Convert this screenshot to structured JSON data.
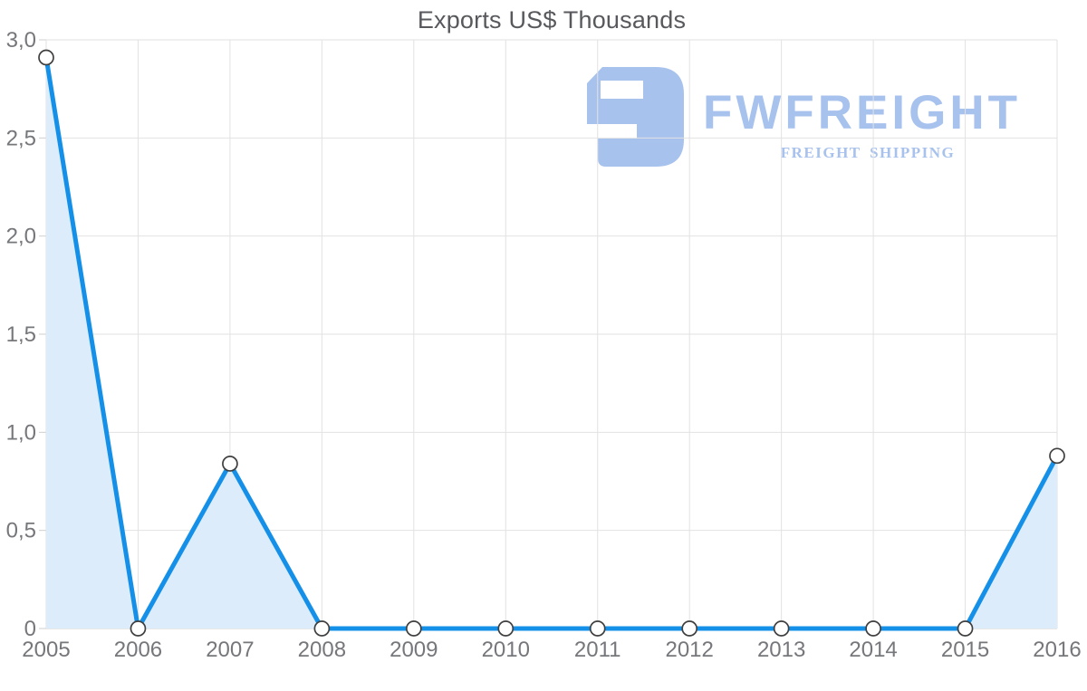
{
  "chart": {
    "title": "Exports US$ Thousands"
  },
  "logo": {
    "name": "FWFREIGHT",
    "tagline": "FREIGHT SHIPPING",
    "color": "#a8c2ee"
  },
  "chart_data": {
    "type": "area",
    "title": "Exports US$ Thousands",
    "categories": [
      "2005",
      "2006",
      "2007",
      "2008",
      "2009",
      "2010",
      "2011",
      "2012",
      "2013",
      "2014",
      "2015",
      "2016"
    ],
    "values": [
      2.91,
      0,
      0.84,
      0,
      0,
      0,
      0,
      0,
      0,
      0,
      0,
      0.88
    ],
    "xlabel": "",
    "ylabel": "",
    "ylim": [
      0,
      3
    ],
    "y_tick_step": 0.5,
    "y_tick_labels": [
      "0",
      "0,5",
      "1,0",
      "1,5",
      "2,0",
      "2,5",
      "3,0"
    ],
    "grid": true,
    "legend": "none",
    "decimal_separator": ",",
    "colors": {
      "line": "#1590e8",
      "fill": "#ddecfb",
      "grid": "#e2e2e2",
      "axis": "#cfcfcf",
      "labels": "#76777b",
      "marker_fill": "#ffffff",
      "marker_stroke": "#3f3f3f"
    }
  }
}
